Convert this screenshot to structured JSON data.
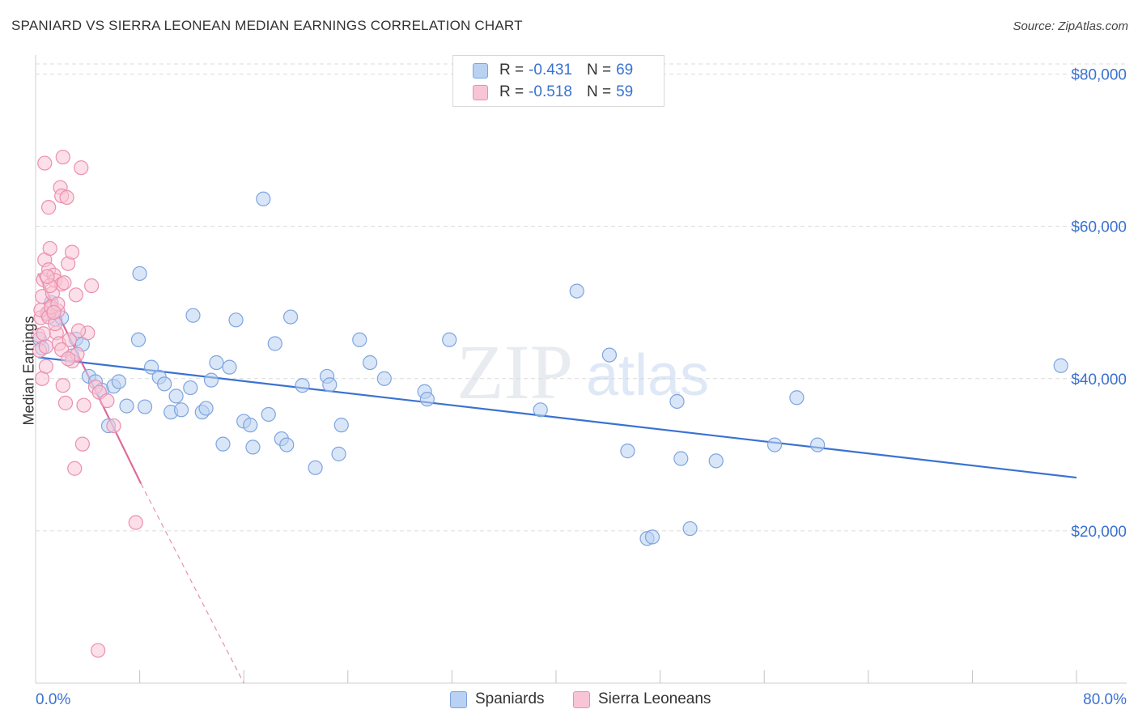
{
  "title": "SPANIARD VS SIERRA LEONEAN MEDIAN EARNINGS CORRELATION CHART",
  "source": "Source: ZipAtlas.com",
  "watermark": {
    "zip": "ZIP",
    "atlas": "atlas"
  },
  "legend": {
    "r_label": "R =",
    "n_label": "N =",
    "rows": [
      {
        "r": "-0.431",
        "n": "69",
        "color": "#3a72d1"
      },
      {
        "r": "-0.518",
        "n": "59",
        "color": "#e0699a"
      }
    ]
  },
  "bottom_legend": [
    "Spaniards",
    "Sierra Leoneans"
  ],
  "chart_data": {
    "type": "scatter",
    "title": "SPANIARD VS SIERRA LEONEAN MEDIAN EARNINGS CORRELATION CHART",
    "xlabel": "",
    "ylabel": "Median Earnings",
    "xlim": [
      0,
      80
    ],
    "ylim": [
      0,
      82500
    ],
    "x_tick_labels": {
      "min": "0.0%",
      "max": "80.0%"
    },
    "y_ticks": [
      20000,
      40000,
      60000,
      80000
    ],
    "y_tick_labels": [
      "$20,000",
      "$40,000",
      "$60,000",
      "$80,000"
    ],
    "grid": true,
    "series": [
      {
        "name": "Spaniards",
        "color": "#7ea4df",
        "fill": "#b9d1f2",
        "trend": {
          "x1": 0.2,
          "y1": 42800,
          "x2": 80,
          "y2": 27000
        },
        "points": [
          [
            0.3,
            45200
          ],
          [
            0.5,
            44000
          ],
          [
            0.9,
            48600
          ],
          [
            1.2,
            50000
          ],
          [
            1.5,
            47800
          ],
          [
            2.0,
            48000
          ],
          [
            2.8,
            43000
          ],
          [
            3.1,
            45200
          ],
          [
            3.6,
            44500
          ],
          [
            4.1,
            40300
          ],
          [
            4.6,
            39600
          ],
          [
            5.1,
            38500
          ],
          [
            5.6,
            33800
          ],
          [
            6.0,
            39000
          ],
          [
            6.4,
            39600
          ],
          [
            7.0,
            36400
          ],
          [
            7.9,
            45100
          ],
          [
            8.0,
            53800
          ],
          [
            8.4,
            36300
          ],
          [
            8.9,
            41500
          ],
          [
            9.5,
            40200
          ],
          [
            9.9,
            39300
          ],
          [
            10.4,
            35600
          ],
          [
            10.8,
            37700
          ],
          [
            11.2,
            35900
          ],
          [
            11.9,
            38800
          ],
          [
            12.1,
            48300
          ],
          [
            12.8,
            35600
          ],
          [
            13.1,
            36100
          ],
          [
            13.5,
            39800
          ],
          [
            13.9,
            42100
          ],
          [
            14.4,
            31400
          ],
          [
            14.9,
            41500
          ],
          [
            15.4,
            47700
          ],
          [
            16.0,
            34400
          ],
          [
            16.5,
            33900
          ],
          [
            16.7,
            31000
          ],
          [
            17.5,
            63600
          ],
          [
            17.9,
            35300
          ],
          [
            18.4,
            44600
          ],
          [
            18.9,
            32100
          ],
          [
            19.3,
            31300
          ],
          [
            19.6,
            48100
          ],
          [
            20.5,
            39100
          ],
          [
            21.5,
            28300
          ],
          [
            22.4,
            40300
          ],
          [
            22.6,
            39200
          ],
          [
            23.3,
            30100
          ],
          [
            23.5,
            33900
          ],
          [
            24.9,
            45100
          ],
          [
            25.7,
            42100
          ],
          [
            26.8,
            40000
          ],
          [
            29.9,
            38300
          ],
          [
            30.1,
            37300
          ],
          [
            31.8,
            45100
          ],
          [
            38.8,
            35900
          ],
          [
            41.6,
            51500
          ],
          [
            44.1,
            43100
          ],
          [
            45.5,
            30500
          ],
          [
            47.0,
            19000
          ],
          [
            47.4,
            19200
          ],
          [
            49.3,
            37000
          ],
          [
            49.6,
            29500
          ],
          [
            50.3,
            20300
          ],
          [
            52.3,
            29200
          ],
          [
            56.8,
            31300
          ],
          [
            58.5,
            37500
          ],
          [
            60.1,
            31300
          ],
          [
            78.8,
            41700
          ]
        ]
      },
      {
        "name": "Sierra Leoneans",
        "color": "#e990ae",
        "fill": "#f9c5d6",
        "trend": {
          "x1": 0.2,
          "y1": 53800,
          "x2": 8.1,
          "y2": 26200,
          "dash_x2": 16.0,
          "dash_y2": 0
        },
        "points": [
          [
            0.2,
            45700
          ],
          [
            0.3,
            43700
          ],
          [
            0.4,
            48000
          ],
          [
            0.5,
            40000
          ],
          [
            0.5,
            50800
          ],
          [
            0.6,
            53000
          ],
          [
            0.7,
            55600
          ],
          [
            0.7,
            68300
          ],
          [
            0.8,
            41600
          ],
          [
            0.9,
            48500
          ],
          [
            1.0,
            62500
          ],
          [
            1.0,
            54300
          ],
          [
            1.1,
            57100
          ],
          [
            1.2,
            49200
          ],
          [
            1.3,
            51200
          ],
          [
            1.4,
            53600
          ],
          [
            1.5,
            52900
          ],
          [
            1.6,
            46000
          ],
          [
            1.7,
            48900
          ],
          [
            1.8,
            44600
          ],
          [
            1.9,
            65100
          ],
          [
            2.0,
            52400
          ],
          [
            2.0,
            64000
          ],
          [
            2.1,
            69100
          ],
          [
            2.1,
            39100
          ],
          [
            2.2,
            52600
          ],
          [
            2.3,
            36800
          ],
          [
            2.4,
            63800
          ],
          [
            2.5,
            55100
          ],
          [
            2.6,
            45100
          ],
          [
            2.8,
            56600
          ],
          [
            2.8,
            42300
          ],
          [
            3.0,
            28200
          ],
          [
            3.1,
            51000
          ],
          [
            3.2,
            43200
          ],
          [
            3.5,
            67700
          ],
          [
            3.6,
            31400
          ],
          [
            3.7,
            36500
          ],
          [
            4.0,
            46000
          ],
          [
            4.3,
            52200
          ],
          [
            4.6,
            38900
          ],
          [
            4.8,
            4300
          ],
          [
            4.9,
            38200
          ],
          [
            5.5,
            37100
          ],
          [
            6.0,
            33800
          ],
          [
            7.7,
            21100
          ],
          [
            0.4,
            49000
          ],
          [
            0.8,
            44200
          ],
          [
            1.0,
            48100
          ],
          [
            1.1,
            52200
          ],
          [
            1.2,
            49400
          ],
          [
            1.5,
            47200
          ],
          [
            0.6,
            45900
          ],
          [
            0.9,
            53400
          ],
          [
            1.7,
            49800
          ],
          [
            2.0,
            43800
          ],
          [
            2.5,
            42600
          ],
          [
            3.3,
            46300
          ],
          [
            1.4,
            48700
          ]
        ]
      }
    ]
  }
}
